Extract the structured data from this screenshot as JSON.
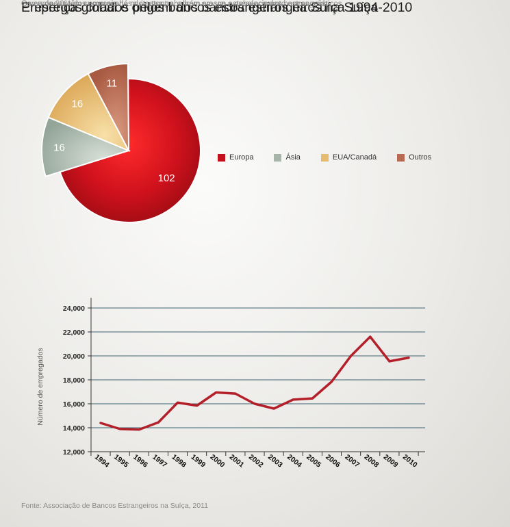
{
  "pie": {
    "title": "Presença global e origem dos bancos estrangeiros na Suíça",
    "subtitle": "Os europeus têm sucursais há muito tempo, porém cresce a presença dos bancos asiáticos."
  },
  "line": {
    "title": "Empregos criados pelos bancos estrangeiros na Suíça 1994-2010",
    "subtitle": "Cerca de 20% dos empregados do setor trabalham em um estabelecimento estrangeiro"
  },
  "footer": {
    "source": "Fonte: Associação de Bancos Estrangeiros na Suíça, 2011"
  },
  "chart_data": [
    {
      "type": "pie",
      "title": "Presença global e origem dos bancos estrangeiros na Suíça",
      "subtitle": "Os europeus têm sucursais há muito tempo, porém cresce a presença dos bancos asiáticos.",
      "slices": [
        {
          "label": "Europa",
          "value": 102,
          "color": "#c4101d"
        },
        {
          "label": "Ásia",
          "value": 16,
          "color": "#a7b5a9"
        },
        {
          "label": "EUA/Canadá",
          "value": 16,
          "color": "#e6bc72"
        },
        {
          "label": "Outros",
          "value": 11,
          "color": "#b96a52"
        }
      ],
      "legend_position": "right"
    },
    {
      "type": "line",
      "title": "Empregos criados pelos bancos estrangeiros na Suíça 1994-2010",
      "subtitle": "Cerca de 20% dos empregados do setor trabalham em um estabelecimento estrangeiro",
      "xlabel": "",
      "ylabel": "Número de empregados",
      "x": [
        "1994",
        "1995",
        "1996",
        "1997",
        "1998",
        "1999",
        "2000",
        "2001",
        "2002",
        "2003",
        "2004",
        "2005",
        "2006",
        "2007",
        "2008",
        "2009",
        "2010"
      ],
      "series": [
        {
          "values": [
            14400,
            13900,
            13850,
            14450,
            16100,
            15850,
            16950,
            16850,
            16000,
            15600,
            16350,
            16450,
            17850,
            20000,
            21600,
            19550,
            19850
          ],
          "color": "#b3202a"
        }
      ],
      "ylim": [
        12000,
        24000
      ],
      "yticks": [
        "12,000",
        "14,000",
        "16,000",
        "18,000",
        "20,000",
        "22,000",
        "24,000"
      ],
      "grid": true
    }
  ]
}
